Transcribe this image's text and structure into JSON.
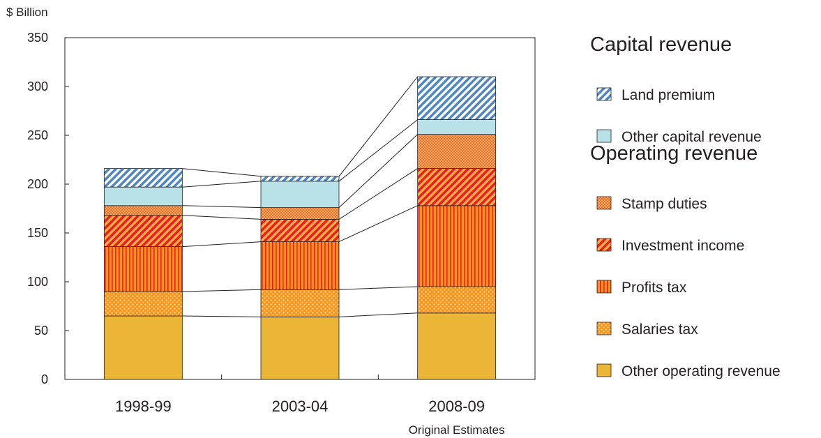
{
  "chart_data": {
    "type": "bar",
    "stacked": true,
    "ylabel": "$ Billion",
    "ylim": [
      0,
      350
    ],
    "yticks": [
      0,
      50,
      100,
      150,
      200,
      250,
      300,
      350
    ],
    "categories": [
      "1998-99",
      "2003-04",
      "2008-09"
    ],
    "category_notes": [
      "",
      "",
      "Original Estimates"
    ],
    "connector_lines": true,
    "legend_position": "right",
    "legend_groups": [
      {
        "title": "Capital revenue",
        "series": [
          "Land premium",
          "Other capital revenue"
        ]
      },
      {
        "title": "Operating revenue",
        "series": [
          "Stamp duties",
          "Investment income",
          "Profits tax",
          "Salaries tax",
          "Other operating revenue"
        ]
      }
    ],
    "series": [
      {
        "name": "Other operating revenue",
        "values": [
          65,
          64,
          68
        ],
        "color": "#ebb637",
        "pattern": "solid"
      },
      {
        "name": "Salaries tax",
        "values": [
          25,
          28,
          27
        ],
        "color": "#f7941d",
        "pattern": "dots"
      },
      {
        "name": "Profits tax",
        "values": [
          46,
          49,
          83
        ],
        "color": "#f7941d",
        "pattern": "vertical-stripes"
      },
      {
        "name": "Investment income",
        "values": [
          32,
          23,
          38
        ],
        "color": "#f26522",
        "pattern": "diagonal-stripes"
      },
      {
        "name": "Stamp duties",
        "values": [
          10,
          12,
          35
        ],
        "color": "#f26522",
        "pattern": "crosshatch"
      },
      {
        "name": "Other capital revenue",
        "values": [
          19,
          27,
          15
        ],
        "color": "#b9e2e8",
        "pattern": "solid"
      },
      {
        "name": "Land premium",
        "values": [
          19,
          5,
          44
        ],
        "color": "#4a86c8",
        "pattern": "diagonal-stripes"
      }
    ]
  }
}
